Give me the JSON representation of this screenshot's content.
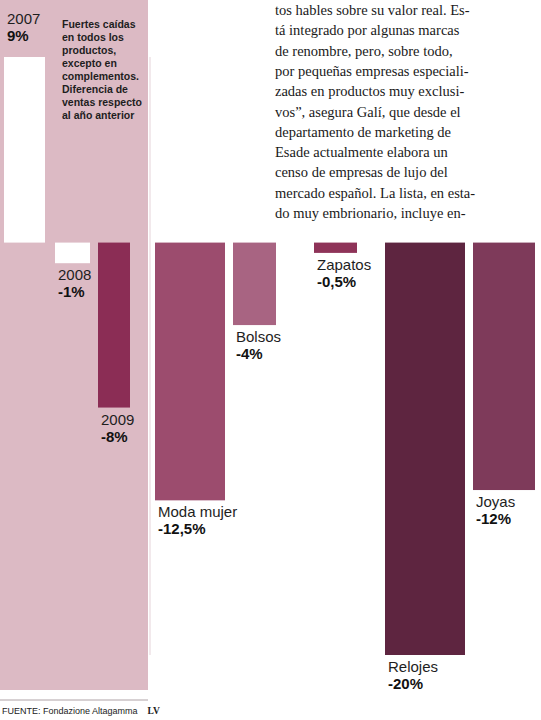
{
  "chart_data": {
    "type": "bar",
    "title": "Fuertes caídas en todos los productos, excepto en complementos. Diferencia de ventas respecto al año anterior",
    "categories": [
      "2007",
      "2008",
      "2009",
      "Moda mujer",
      "Bolsos",
      "Zapatos",
      "Relojes",
      "Joyas"
    ],
    "values": [
      9,
      -1,
      -8,
      -12.5,
      -4,
      -0.5,
      -20,
      -12
    ],
    "value_labels": [
      "9%",
      "-1%",
      "-8%",
      "-12,5%",
      "-4%",
      "-0,5%",
      "-20%",
      "-12%"
    ],
    "colors": [
      "#ffffff",
      "#ffffff",
      "#8b2d55",
      "#9c4c6e",
      "#a86482",
      "#8e3358",
      "#5e2540",
      "#7e3a5a"
    ],
    "ylim": [
      -20,
      9
    ],
    "data_labels": true
  },
  "footer": {
    "source": "FUENTE: Fondazione Altagamma",
    "credit": "LV"
  },
  "article": {
    "lines": [
      "tos hables sobre su valor real. Es-",
      "tá integrado por algunas marcas",
      "de renombre, pero, sobre todo,",
      "por pequeñas empresas especiali-",
      "zadas en productos muy exclusi-",
      "vos”, asegura Galí, que desde el",
      "departamento de marketing de",
      "Esade actualmente elabora un",
      "censo de empresas de lujo del",
      "mercado español. La lista, en esta-",
      "do muy embrionario, incluye en-"
    ]
  }
}
